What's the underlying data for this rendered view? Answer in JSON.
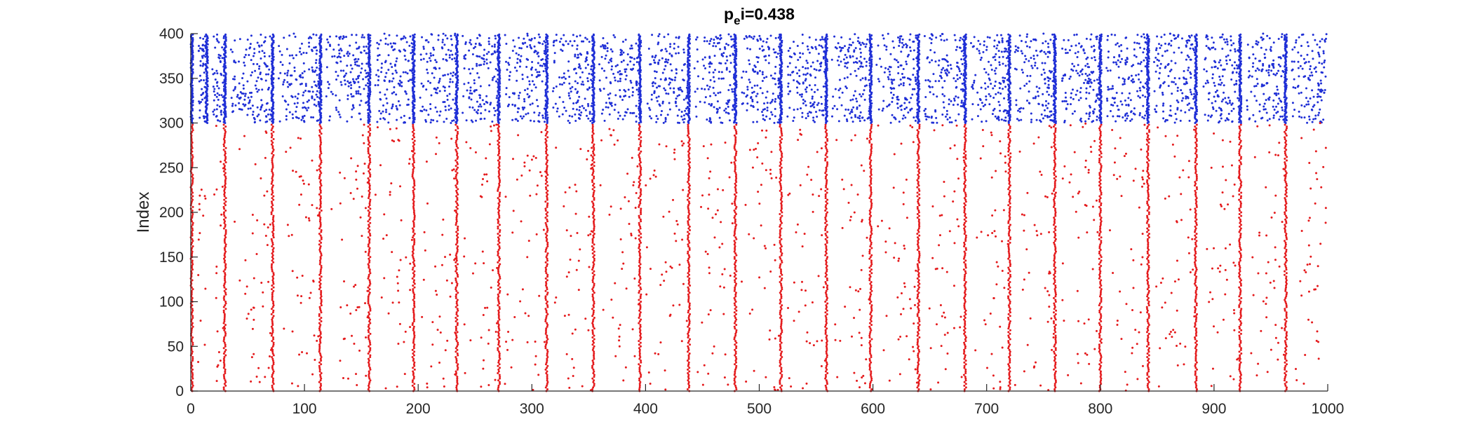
{
  "chart_data": {
    "type": "scatter",
    "title": {
      "prefix": "p",
      "subscript": "e",
      "suffix": "i=0.438"
    },
    "xlabel": "",
    "ylabel": "Index",
    "xlim": [
      0,
      1000
    ],
    "ylim": [
      0,
      400
    ],
    "xticks": [
      0,
      100,
      200,
      300,
      400,
      500,
      600,
      700,
      800,
      900,
      1000
    ],
    "yticks": [
      0,
      50,
      100,
      150,
      200,
      250,
      300,
      350,
      400
    ],
    "grid": false,
    "legend": "none",
    "series": [
      {
        "index_range": [
          0,
          300
        ],
        "color": "#e41a1c"
      },
      {
        "index_range": [
          300,
          400
        ],
        "color": "#1f2fd6"
      }
    ],
    "burst_times": [
      1,
      14,
      30,
      72,
      114,
      157,
      196,
      234,
      271,
      313,
      354,
      395,
      438,
      479,
      519,
      559,
      598,
      640,
      681,
      720,
      760,
      800,
      842,
      884,
      923,
      963
    ],
    "inhibitory_only_bursts": [
      14
    ],
    "colors": {
      "excitatory": "#e41a1c",
      "inhibitory": "#1f2fd6",
      "axis": "#262626"
    }
  }
}
